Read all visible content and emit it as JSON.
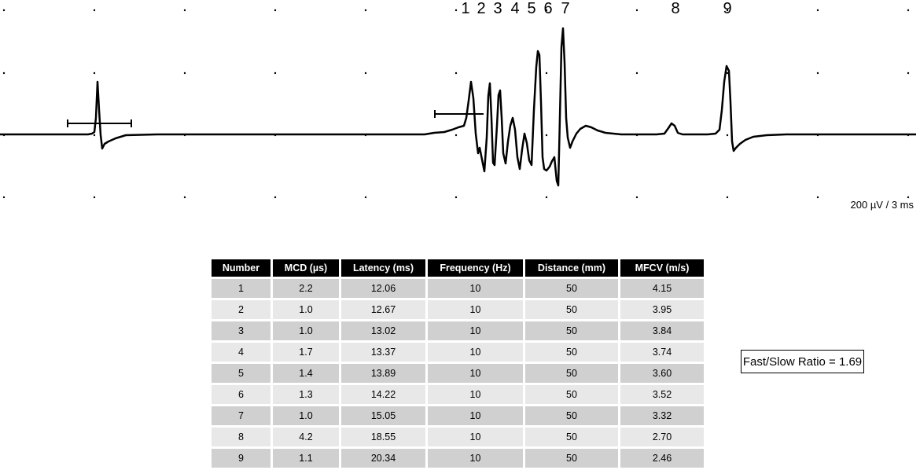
{
  "chart_data": [
    {
      "type": "line",
      "peak_labels": [
        "1",
        "2",
        "3",
        "4",
        "5",
        "6",
        "7",
        "8",
        "9"
      ],
      "scale_label": "200 µV / 3 ms"
    },
    {
      "type": "table",
      "columns": [
        "Number",
        "MCD (µs)",
        "Latency (ms)",
        "Frequency (Hz)",
        "Distance (mm)",
        "MFCV (m/s)"
      ],
      "rows": [
        [
          "1",
          "2.2",
          "12.06",
          "10",
          "50",
          "4.15"
        ],
        [
          "2",
          "1.0",
          "12.67",
          "10",
          "50",
          "3.95"
        ],
        [
          "3",
          "1.0",
          "13.02",
          "10",
          "50",
          "3.84"
        ],
        [
          "4",
          "1.7",
          "13.37",
          "10",
          "50",
          "3.74"
        ],
        [
          "5",
          "1.4",
          "13.89",
          "10",
          "50",
          "3.60"
        ],
        [
          "6",
          "1.3",
          "14.22",
          "10",
          "50",
          "3.52"
        ],
        [
          "7",
          "1.0",
          "15.05",
          "10",
          "50",
          "3.32"
        ],
        [
          "8",
          "4.2",
          "18.55",
          "10",
          "50",
          "2.70"
        ],
        [
          "9",
          "1.1",
          "20.34",
          "10",
          "50",
          "2.46"
        ]
      ]
    }
  ],
  "ratio_text": "Fast/Slow Ratio = 1.69"
}
